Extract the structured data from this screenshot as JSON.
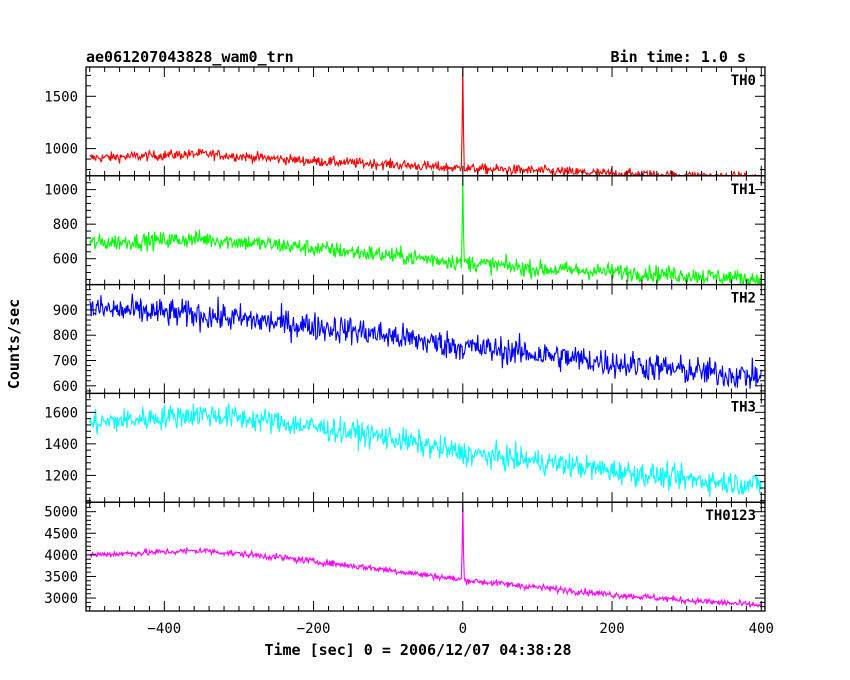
{
  "chart_data": {
    "type": "line",
    "title": "ae061207043828_wam0_trn",
    "bin_time": "Bin time: 1.0 s",
    "xlabel": "Time [sec] 0 = 2006/12/07 04:38:28",
    "ylabel": "Counts/sec",
    "x_range": [
      -505,
      405
    ],
    "x_ticks": [
      -400,
      -200,
      0,
      200,
      400
    ],
    "x_tick_labels": [
      "−400",
      "−200",
      "0",
      "200",
      "400"
    ],
    "panels": [
      {
        "name": "TH0",
        "color": "#ff0000",
        "ylim": [
          740,
          1780
        ],
        "y_ticks": [
          1000,
          1500
        ],
        "y_tick_labels": [
          "1000",
          "1500"
        ],
        "trend": [
          [
            -500,
            910
          ],
          [
            -350,
            950
          ],
          [
            -200,
            880
          ],
          [
            -100,
            850
          ],
          [
            0,
            810
          ],
          [
            100,
            790
          ],
          [
            200,
            760
          ],
          [
            300,
            740
          ],
          [
            400,
            720
          ]
        ],
        "noise": 35,
        "peak": {
          "x": 0,
          "y": 1780
        }
      },
      {
        "name": "TH1",
        "color": "#00ff00",
        "ylim": [
          450,
          1080
        ],
        "y_ticks": [
          600,
          800,
          1000
        ],
        "y_tick_labels": [
          "600",
          "800",
          "1000"
        ],
        "trend": [
          [
            -500,
            690
          ],
          [
            -350,
            715
          ],
          [
            -250,
            680
          ],
          [
            -100,
            620
          ],
          [
            0,
            580
          ],
          [
            100,
            540
          ],
          [
            200,
            525
          ],
          [
            300,
            505
          ],
          [
            400,
            480
          ]
        ],
        "noise": 35,
        "peak": {
          "x": 0,
          "y": 1080
        }
      },
      {
        "name": "TH2",
        "color": "#0000ff",
        "ylim": [
          570,
          1000
        ],
        "y_ticks": [
          600,
          700,
          800,
          900
        ],
        "y_tick_labels": [
          "600",
          "700",
          "800",
          "900"
        ],
        "trend": [
          [
            -500,
            905
          ],
          [
            -350,
            880
          ],
          [
            -250,
            850
          ],
          [
            -150,
            820
          ],
          [
            -50,
            775
          ],
          [
            0,
            755
          ],
          [
            100,
            725
          ],
          [
            200,
            690
          ],
          [
            300,
            660
          ],
          [
            400,
            635
          ]
        ],
        "noise": 40,
        "peak": null
      },
      {
        "name": "TH3",
        "color": "#00ffff",
        "ylim": [
          1030,
          1720
        ],
        "y_ticks": [
          1200,
          1400,
          1600
        ],
        "y_tick_labels": [
          "1200",
          "1400",
          "1600"
        ],
        "trend": [
          [
            -500,
            1530
          ],
          [
            -350,
            1590
          ],
          [
            -250,
            1540
          ],
          [
            -100,
            1440
          ],
          [
            0,
            1340
          ],
          [
            100,
            1290
          ],
          [
            200,
            1230
          ],
          [
            300,
            1175
          ],
          [
            400,
            1140
          ]
        ],
        "noise": 55,
        "peak": null
      },
      {
        "name": "TH0123",
        "color": "#ff00ff",
        "ylim": [
          2700,
          5220
        ],
        "y_ticks": [
          3000,
          3500,
          4000,
          4500,
          5000
        ],
        "y_tick_labels": [
          "3000",
          "3500",
          "4000",
          "4500",
          "5000"
        ],
        "trend": [
          [
            -500,
            4000
          ],
          [
            -350,
            4100
          ],
          [
            -250,
            3950
          ],
          [
            -100,
            3650
          ],
          [
            0,
            3420
          ],
          [
            100,
            3250
          ],
          [
            200,
            3080
          ],
          [
            300,
            2950
          ],
          [
            400,
            2830
          ]
        ],
        "noise": 55,
        "peak": {
          "x": 0,
          "y": 5220
        }
      }
    ]
  }
}
